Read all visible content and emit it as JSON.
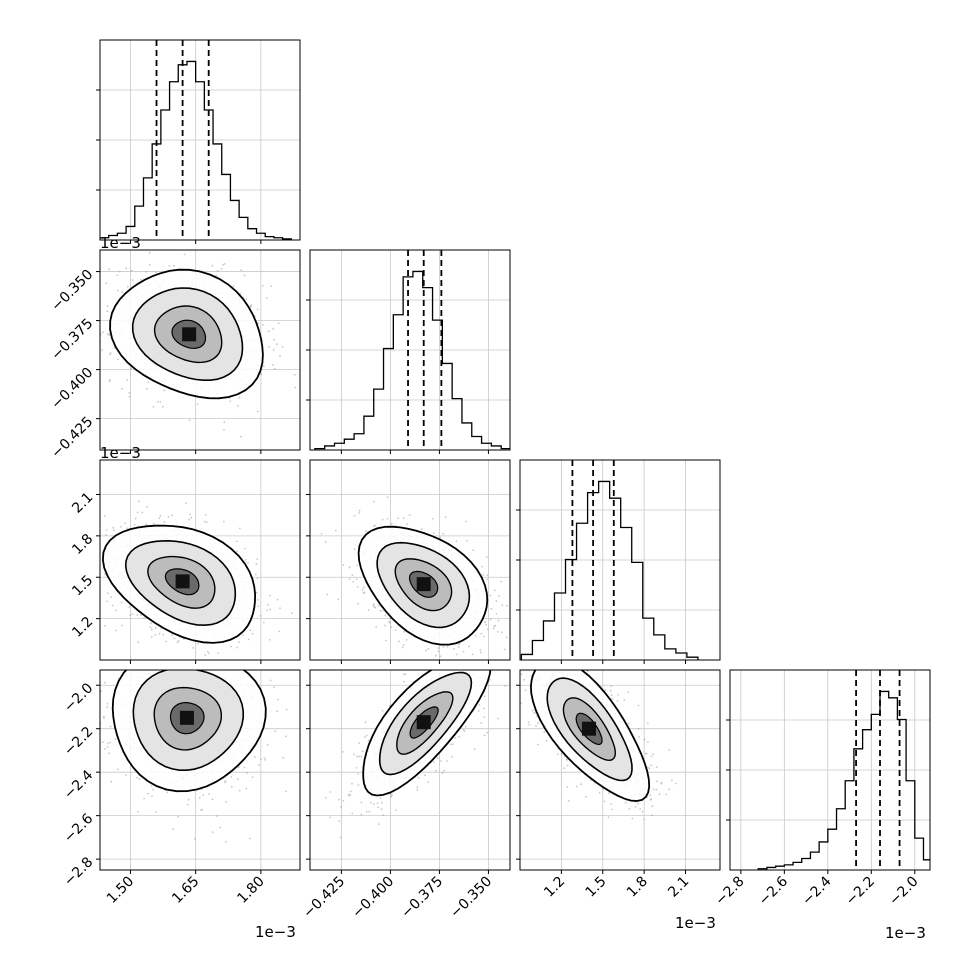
{
  "chart_data": {
    "type": "corner",
    "grid": true,
    "dims": 4,
    "panels": [
      {
        "row": 0,
        "col": 0,
        "type": "histogram",
        "x_range": [
          1.43,
          1.89
        ],
        "bin_centers": [
          1.44,
          1.46,
          1.48,
          1.5,
          1.52,
          1.54,
          1.56,
          1.58,
          1.6,
          1.62,
          1.64,
          1.66,
          1.68,
          1.7,
          1.72,
          1.74,
          1.76,
          1.78,
          1.8,
          1.82,
          1.84,
          1.86
        ],
        "counts": [
          2,
          4,
          6,
          12,
          30,
          55,
          85,
          115,
          140,
          155,
          158,
          140,
          115,
          85,
          58,
          35,
          20,
          10,
          6,
          3,
          2,
          1
        ],
        "quantiles": [
          1.56,
          1.62,
          1.68
        ]
      },
      {
        "row": 1,
        "col": 1,
        "type": "histogram",
        "x_range": [
          -0.441,
          -0.339
        ],
        "bin_centers": [
          -0.436,
          -0.431,
          -0.426,
          -0.421,
          -0.416,
          -0.411,
          -0.406,
          -0.401,
          -0.396,
          -0.391,
          -0.386,
          -0.381,
          -0.376,
          -0.371,
          -0.366,
          -0.361,
          -0.356,
          -0.351,
          -0.346,
          -0.341
        ],
        "counts": [
          1,
          3,
          5,
          8,
          12,
          25,
          45,
          75,
          100,
          128,
          132,
          120,
          96,
          64,
          38,
          20,
          10,
          5,
          3,
          1
        ],
        "quantiles": [
          -0.391,
          -0.383,
          -0.374
        ]
      },
      {
        "row": 2,
        "col": 2,
        "type": "histogram",
        "x_range": [
          0.9,
          2.35
        ],
        "bin_centers": [
          0.95,
          1.03,
          1.11,
          1.19,
          1.27,
          1.35,
          1.43,
          1.51,
          1.59,
          1.67,
          1.75,
          1.83,
          1.91,
          1.99,
          2.07,
          2.15
        ],
        "counts": [
          4,
          14,
          28,
          48,
          72,
          98,
          120,
          128,
          116,
          95,
          70,
          30,
          18,
          8,
          5,
          2
        ],
        "quantiles": [
          1.28,
          1.43,
          1.58
        ]
      },
      {
        "row": 3,
        "col": 3,
        "type": "histogram",
        "x_range": [
          -2.85,
          -1.93
        ],
        "bin_centers": [
          -2.7,
          -2.66,
          -2.62,
          -2.58,
          -2.54,
          -2.5,
          -2.46,
          -2.42,
          -2.38,
          -2.34,
          -2.3,
          -2.26,
          -2.22,
          -2.18,
          -2.14,
          -2.1,
          -2.06,
          -2.02,
          -1.98,
          -1.94
        ],
        "counts": [
          1,
          2,
          3,
          4,
          6,
          9,
          14,
          22,
          32,
          48,
          70,
          95,
          110,
          122,
          140,
          135,
          118,
          70,
          25,
          8
        ],
        "quantiles": [
          -2.27,
          -2.16,
          -2.07
        ]
      },
      {
        "row": 1,
        "col": 0,
        "type": "density_2d",
        "x_center": 1.635,
        "y_center": -0.382,
        "x_sd": 0.07,
        "y_sd": 0.013,
        "corr": -0.2
      },
      {
        "row": 2,
        "col": 0,
        "type": "density_2d",
        "x_center": 1.62,
        "y_center": 1.47,
        "x_sd": 0.07,
        "y_sd": 0.17,
        "corr": -0.35
      },
      {
        "row": 2,
        "col": 1,
        "type": "density_2d",
        "x_center": -0.383,
        "y_center": 1.45,
        "x_sd": 0.013,
        "y_sd": 0.17,
        "corr": -0.4
      },
      {
        "row": 3,
        "col": 0,
        "type": "density_2d",
        "x_center": 1.63,
        "y_center": -2.15,
        "x_sd": 0.07,
        "y_sd": 0.13,
        "corr": 0.0
      },
      {
        "row": 3,
        "col": 1,
        "type": "density_2d",
        "x_center": -0.383,
        "y_center": -2.17,
        "x_sd": 0.013,
        "y_sd": 0.13,
        "corr": 0.75
      },
      {
        "row": 3,
        "col": 2,
        "type": "density_2d",
        "x_center": 1.4,
        "y_center": -2.2,
        "x_sd": 0.17,
        "y_sd": 0.13,
        "corr": -0.7
      }
    ],
    "axes": {
      "col0": {
        "range": [
          1.43,
          1.89
        ],
        "ticks": [
          1.5,
          1.65,
          1.8
        ],
        "tick_labels": [
          "1.50",
          "1.65",
          "1.80"
        ],
        "multiplier": "1e−3"
      },
      "col1": {
        "range": [
          -0.441,
          -0.339
        ],
        "ticks": [
          -0.425,
          -0.4,
          -0.375,
          -0.35
        ],
        "tick_labels": [
          "−0.425",
          "−0.400",
          "−0.375",
          "−0.350"
        ]
      },
      "col2": {
        "range": [
          0.9,
          2.35
        ],
        "ticks": [
          1.2,
          1.5,
          1.8,
          2.1
        ],
        "tick_labels": [
          "1.2",
          "1.5",
          "1.8",
          "2.1"
        ],
        "multiplier": "1e−3"
      },
      "col3": {
        "range": [
          -2.85,
          -1.93
        ],
        "ticks": [
          -2.8,
          -2.6,
          -2.4,
          -2.2,
          -2.0
        ],
        "tick_labels": [
          "−2.8",
          "−2.6",
          "−2.4",
          "−2.2",
          "−2.0"
        ],
        "multiplier": "1e−3"
      },
      "row1": {
        "range": [
          -0.441,
          -0.339
        ],
        "ticks": [
          -0.425,
          -0.4,
          -0.375,
          -0.35
        ],
        "tick_labels": [
          "−0.425",
          "−0.400",
          "−0.375",
          "−0.350"
        ],
        "multiplier": "1e−3"
      },
      "row2": {
        "range": [
          0.9,
          2.35
        ],
        "ticks": [
          1.2,
          1.5,
          1.8,
          2.1
        ],
        "tick_labels": [
          "1.2",
          "1.5",
          "1.8",
          "2.1"
        ],
        "multiplier": "1e−3"
      },
      "row3": {
        "range": [
          -2.85,
          -1.93
        ],
        "ticks": [
          -2.8,
          -2.6,
          -2.4,
          -2.2,
          -2.0
        ],
        "tick_labels": [
          "−2.8",
          "−2.6",
          "−2.4",
          "−2.2",
          "−2.0"
        ]
      }
    }
  }
}
